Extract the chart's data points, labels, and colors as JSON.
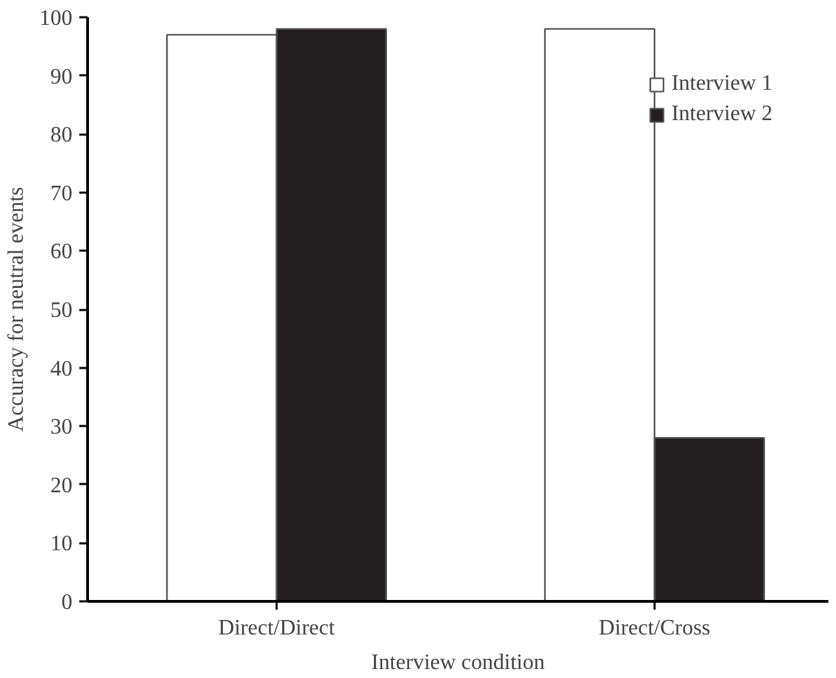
{
  "chart_data": {
    "type": "bar",
    "xlabel": "Interview condition",
    "ylabel": "Accuracy for neutral events",
    "categories": [
      "Direct/Direct",
      "Direct/Cross"
    ],
    "series": [
      {
        "name": "Interview 1",
        "color": "#ffffff",
        "values": [
          97,
          98
        ]
      },
      {
        "name": "Interview 2",
        "color": "#231f20",
        "values": [
          98,
          28
        ]
      }
    ],
    "ylim": [
      0,
      100
    ],
    "yticks": [
      0,
      10,
      20,
      30,
      40,
      50,
      60,
      70,
      80,
      90,
      100
    ],
    "grid": false,
    "legend": "top right"
  }
}
